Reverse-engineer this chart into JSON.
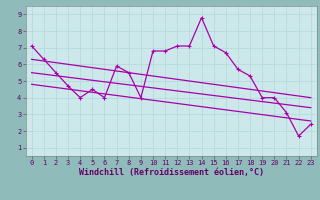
{
  "title": "",
  "xlabel": "Windchill (Refroidissement éolien,°C)",
  "ylabel": "",
  "xlim": [
    -0.5,
    23.5
  ],
  "ylim": [
    0.5,
    9.5
  ],
  "xticks": [
    0,
    1,
    2,
    3,
    4,
    5,
    6,
    7,
    8,
    9,
    10,
    11,
    12,
    13,
    14,
    15,
    16,
    17,
    18,
    19,
    20,
    21,
    22,
    23
  ],
  "yticks": [
    1,
    2,
    3,
    4,
    5,
    6,
    7,
    8,
    9
  ],
  "background_color": "#cce8ea",
  "grid_color": "#b0d8db",
  "line_color": "#aa00aa",
  "series_main": {
    "x": [
      0,
      1,
      2,
      3,
      4,
      5,
      6,
      7,
      8,
      9,
      10,
      11,
      12,
      13,
      14,
      15,
      16,
      17,
      18,
      19,
      20,
      21,
      22,
      23
    ],
    "y": [
      7.1,
      6.3,
      5.5,
      4.7,
      4.0,
      4.5,
      4.0,
      5.9,
      5.5,
      4.0,
      6.8,
      6.8,
      7.1,
      7.1,
      8.8,
      7.1,
      6.7,
      5.7,
      5.3,
      4.0,
      4.0,
      3.1,
      1.7,
      2.4
    ]
  },
  "series_upper": {
    "x": [
      0,
      23
    ],
    "y": [
      6.3,
      4.0
    ]
  },
  "series_mid": {
    "x": [
      0,
      23
    ],
    "y": [
      5.5,
      3.4
    ]
  },
  "series_lower": {
    "x": [
      0,
      23
    ],
    "y": [
      4.8,
      2.6
    ]
  },
  "marker": "+",
  "markersize": 3,
  "linewidth": 0.9,
  "tick_fontsize": 5,
  "xlabel_fontsize": 6,
  "fig_bg": "#8fbbbb"
}
